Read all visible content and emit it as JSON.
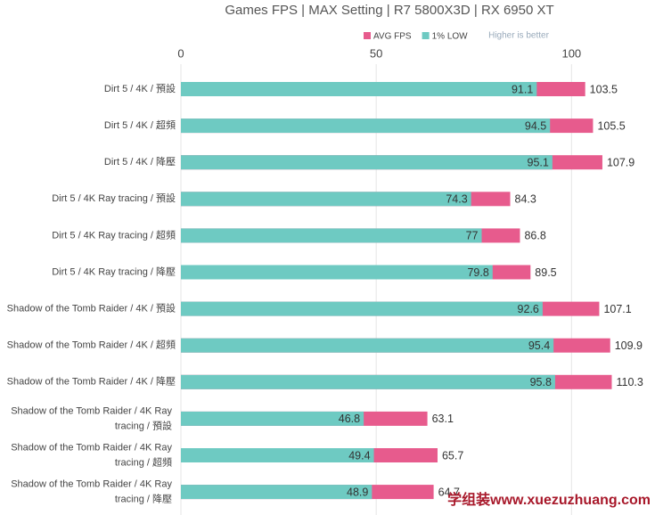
{
  "chart_data": {
    "type": "overlap-barh",
    "title": "Games FPS | MAX Setting | R7 5800X3D | RX 6950 XT",
    "annotation": "Higher is better",
    "watermark": "学组装www.xuezuzhuang.com",
    "categories": [
      "Dirt 5 / 4K / 預設",
      "Dirt 5 / 4K / 超頻",
      "Dirt 5 / 4K / 降壓",
      "Dirt 5 / 4K Ray tracing / 預設",
      "Dirt 5 / 4K Ray tracing / 超頻",
      "Dirt 5 / 4K Ray tracing / 降壓",
      "Shadow of the Tomb Raider / 4K / 預設",
      "Shadow of the Tomb Raider / 4K / 超頻",
      "Shadow of the Tomb Raider / 4K / 降壓",
      "Shadow of the Tomb Raider / 4K Ray tracing / 預設",
      "Shadow of the Tomb Raider / 4K Ray tracing / 超頻",
      "Shadow of the Tomb Raider / 4K Ray tracing / 降壓"
    ],
    "series": [
      {
        "name": "AVG FPS",
        "color": "#e75b8d",
        "values": [
          103.5,
          105.5,
          107.9,
          84.3,
          86.8,
          89.5,
          107.1,
          109.9,
          110.3,
          63.1,
          65.7,
          64.7
        ]
      },
      {
        "name": "1% LOW",
        "color": "#6ecac2",
        "values": [
          91.1,
          94.5,
          95.1,
          74.3,
          77,
          79.8,
          92.6,
          95.4,
          95.8,
          46.8,
          49.4,
          48.9
        ]
      }
    ],
    "xlim": [
      0,
      120
    ],
    "xticks": [
      0,
      50,
      100
    ],
    "grid": true
  }
}
